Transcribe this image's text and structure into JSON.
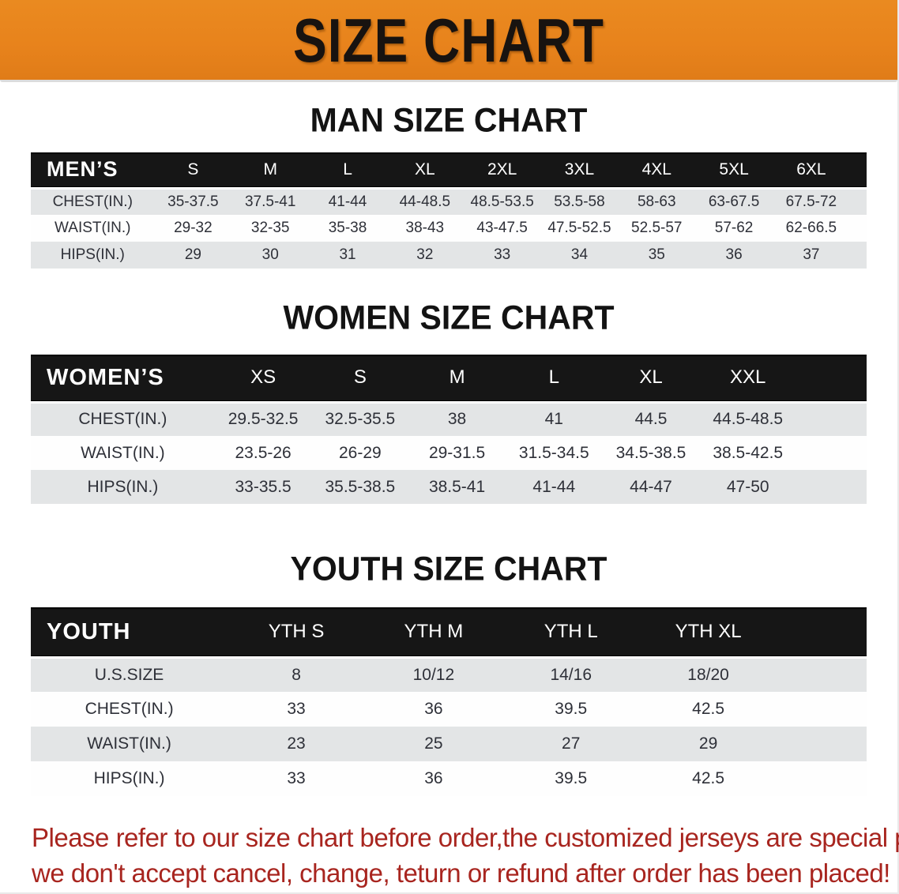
{
  "banner": {
    "title": "SIZE CHART",
    "bg_color": "#e8831c",
    "text_color": "#181310"
  },
  "men": {
    "title": "MAN SIZE CHART",
    "header_label": "MEN’S",
    "sizes": [
      "S",
      "M",
      "L",
      "XL",
      "2XL",
      "3XL",
      "4XL",
      "5XL",
      "6XL"
    ],
    "rows": [
      {
        "label": "CHEST(IN.)",
        "values": [
          "35-37.5",
          "37.5-41",
          "41-44",
          "44-48.5",
          "48.5-53.5",
          "53.5-58",
          "58-63",
          "63-67.5",
          "67.5-72"
        ]
      },
      {
        "label": "WAIST(IN.)",
        "values": [
          "29-32",
          "32-35",
          "35-38",
          "38-43",
          "43-47.5",
          "47.5-52.5",
          "52.5-57",
          "57-62",
          "62-66.5"
        ]
      },
      {
        "label": "HIPS(IN.)",
        "values": [
          "29",
          "30",
          "31",
          "32",
          "33",
          "34",
          "35",
          "36",
          "37"
        ]
      }
    ]
  },
  "women": {
    "title": "WOMEN SIZE CHART",
    "header_label": "WOMEN’S",
    "sizes": [
      "XS",
      "S",
      "M",
      "L",
      "XL",
      "XXL"
    ],
    "rows": [
      {
        "label": "CHEST(IN.)",
        "values": [
          "29.5-32.5",
          "32.5-35.5",
          "38",
          "41",
          "44.5",
          "44.5-48.5"
        ]
      },
      {
        "label": "WAIST(IN.)",
        "values": [
          "23.5-26",
          "26-29",
          "29-31.5",
          "31.5-34.5",
          "34.5-38.5",
          "38.5-42.5"
        ]
      },
      {
        "label": "HIPS(IN.)",
        "values": [
          "33-35.5",
          "35.5-38.5",
          "38.5-41",
          "41-44",
          "44-47",
          "47-50"
        ]
      }
    ]
  },
  "youth": {
    "title": "YOUTH SIZE CHART",
    "header_label": "YOUTH",
    "sizes": [
      "YTH S",
      "YTH M",
      "YTH L",
      "YTH XL"
    ],
    "rows": [
      {
        "label": "U.S.SIZE",
        "values": [
          "8",
          "10/12",
          "14/16",
          "18/20"
        ]
      },
      {
        "label": "CHEST(IN.)",
        "values": [
          "33",
          "36",
          "39.5",
          "42.5"
        ]
      },
      {
        "label": "WAIST(IN.)",
        "values": [
          "23",
          "25",
          "27",
          "29"
        ]
      },
      {
        "label": "HIPS(IN.)",
        "values": [
          "33",
          "36",
          "39.5",
          "42.5"
        ]
      }
    ]
  },
  "footer": {
    "line1": "Please refer to our size chart before order,the customized jerseys are special products,",
    "line2": "we don't accept cancel, change, teturn or refund after order has been placed!",
    "text_color": "#a8251f"
  },
  "colors": {
    "banner_orange": "#e8831c",
    "table_header_black": "#161616",
    "row_stripe_gray": "#e3e5e6",
    "row_plain_white": "#fefefe",
    "disclaimer_red": "#a8251f"
  }
}
